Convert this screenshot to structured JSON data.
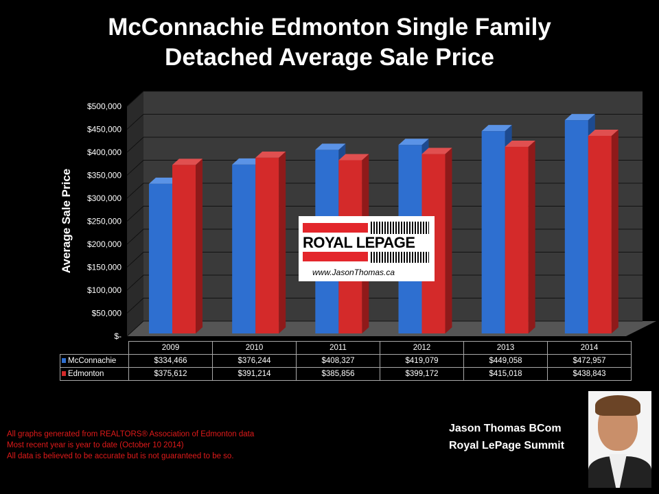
{
  "title_line1": "McConnachie Edmonton Single Family",
  "title_line2": "Detached Average Sale Price",
  "chart_data": {
    "type": "bar",
    "title": "McConnachie Edmonton Single Family Detached Average Sale Price",
    "ylabel": "Average Sale Price",
    "ylim": [
      0,
      500000
    ],
    "yticks": [
      "$-",
      "$50,000",
      "$100,000",
      "$150,000",
      "$200,000",
      "$250,000",
      "$300,000",
      "$350,000",
      "$400,000",
      "$450,000",
      "$500,000"
    ],
    "categories": [
      "2009",
      "2010",
      "2011",
      "2012",
      "2013",
      "2014"
    ],
    "series": [
      {
        "name": "McConnachie",
        "color": "#2e6fd0",
        "values": [
          334466,
          376244,
          408327,
          419079,
          449058,
          472957
        ],
        "labels": [
          "$334,466",
          "$376,244",
          "$408,327",
          "$419,079",
          "$449,058",
          "$472,957"
        ]
      },
      {
        "name": "Edmonton",
        "color": "#d42a2a",
        "values": [
          375612,
          391214,
          385856,
          399172,
          415018,
          438843
        ],
        "labels": [
          "$375,612",
          "$391,214",
          "$385,856",
          "$399,172",
          "$415,018",
          "$438,843"
        ]
      }
    ],
    "grid": true,
    "legend": "data table below chart"
  },
  "logo": {
    "brand": "ROYAL LEPAGE",
    "url": "www.JasonThomas.ca"
  },
  "notes": [
    "All graphs generated from REALTORS® Association of Edmonton data",
    "Most recent year is year to date (October 10 2014)",
    "All data is believed to be accurate but is not guaranteed to be so."
  ],
  "agent": {
    "name": "Jason Thomas BCom",
    "company": "Royal LePage Summit"
  }
}
